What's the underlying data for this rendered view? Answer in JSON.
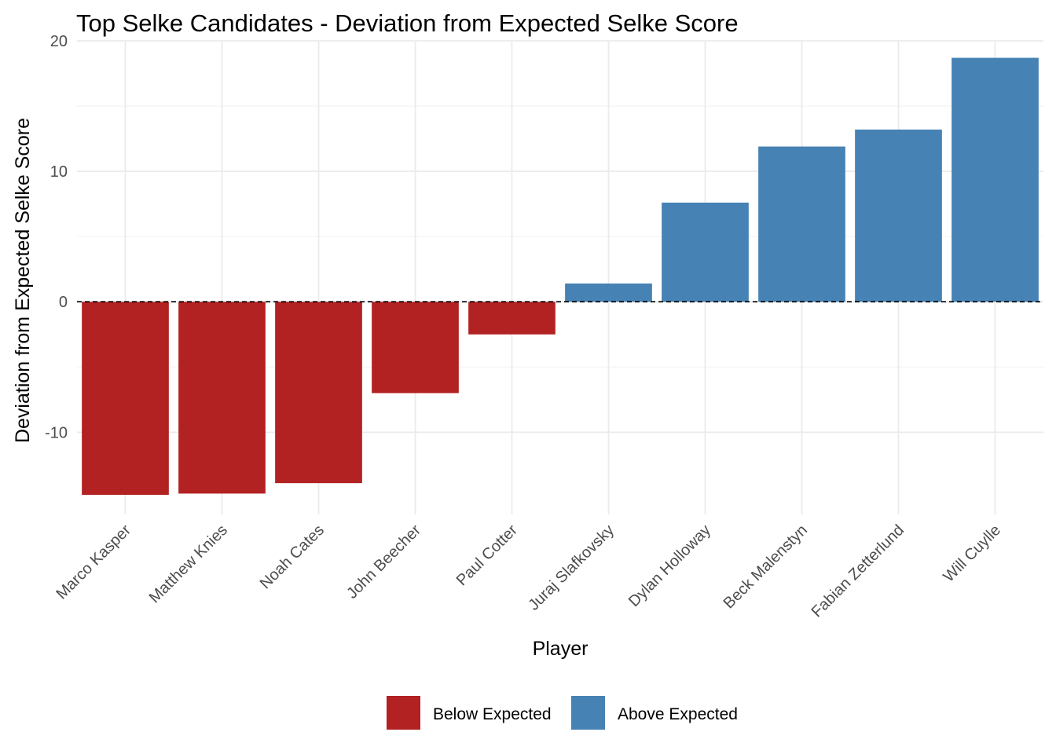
{
  "chart_data": {
    "type": "bar",
    "title": "Top Selke Candidates - Deviation from Expected Selke Score",
    "xlabel": "Player",
    "ylabel": "Deviation from Expected Selke Score",
    "categories": [
      "Marco Kasper",
      "Matthew Knies",
      "Noah Cates",
      "John Beecher",
      "Paul Cotter",
      "Juraj Slafkovsky",
      "Dylan Holloway",
      "Beck Malenstyn",
      "Fabian Zetterlund",
      "Will Cuylle"
    ],
    "values": [
      -14.8,
      -14.7,
      -13.9,
      -7.0,
      -2.5,
      1.4,
      7.6,
      11.9,
      13.2,
      18.7
    ],
    "groups": [
      "Below Expected",
      "Below Expected",
      "Below Expected",
      "Below Expected",
      "Below Expected",
      "Above Expected",
      "Above Expected",
      "Above Expected",
      "Above Expected",
      "Above Expected"
    ],
    "ylim": [
      -16.3,
      20
    ],
    "yticks": [
      20,
      10,
      0,
      -10
    ],
    "ytick_labels": [
      "20",
      "10",
      "0",
      "-10"
    ],
    "reference_line": 0,
    "grid": true,
    "legend": {
      "position": "bottom",
      "entries": [
        {
          "label": "Below Expected",
          "color": "#B22222"
        },
        {
          "label": "Above Expected",
          "color": "#4682B4"
        }
      ]
    }
  }
}
